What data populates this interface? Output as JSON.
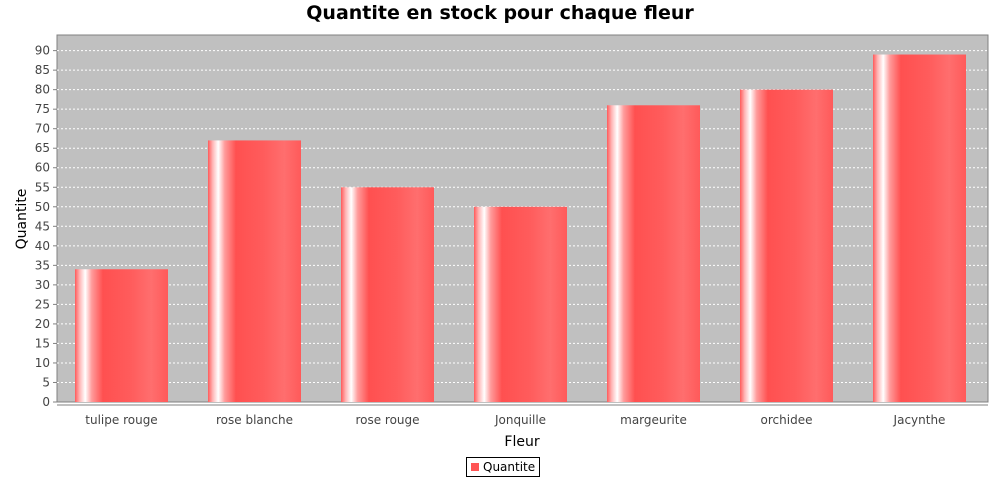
{
  "chart_data": {
    "type": "bar",
    "title": "Quantite en stock pour chaque fleur",
    "xlabel": "Fleur",
    "ylabel": "Quantite",
    "categories": [
      "tulipe rouge",
      "rose blanche",
      "rose rouge",
      "Jonquille",
      "margeurite",
      "orchidee",
      "Jacynthe"
    ],
    "series": [
      {
        "name": "Quantite",
        "values": [
          34,
          67,
          55,
          50,
          76,
          80,
          89
        ]
      }
    ],
    "ylim": [
      0,
      94
    ],
    "yticks": [
      0,
      5,
      10,
      15,
      20,
      25,
      30,
      35,
      40,
      45,
      50,
      55,
      60,
      65,
      70,
      75,
      80,
      85,
      90
    ],
    "grid": true,
    "legend_position": "bottom",
    "colors": {
      "bar": "#ff5555",
      "bar_highlight": "#ffffff",
      "plot_background": "#c0c0c0",
      "gridline": "#ffffff"
    }
  }
}
